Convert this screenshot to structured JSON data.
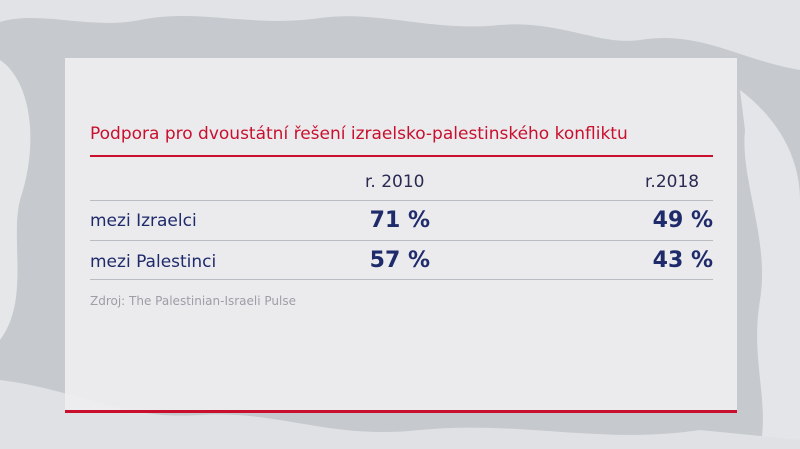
{
  "chart_data": {
    "type": "table",
    "title": "Podpora pro dvoustátní řešení izraelsko-palestinského konfliktu",
    "columns": [
      "r. 2010",
      "r.2018"
    ],
    "rows": [
      {
        "label": "mezi Izraelci",
        "values": [
          "71 %",
          "49 %"
        ]
      },
      {
        "label": "mezi Palestinci",
        "values": [
          "57 %",
          "43 %"
        ]
      }
    ],
    "source": "Zdroj: The Palestinian-Israeli Pulse"
  },
  "colors": {
    "accent_red": "#c8102e",
    "text_navy": "#1e2a6a",
    "panel": "#eeeef0",
    "background_map": "#c9ccd0"
  }
}
